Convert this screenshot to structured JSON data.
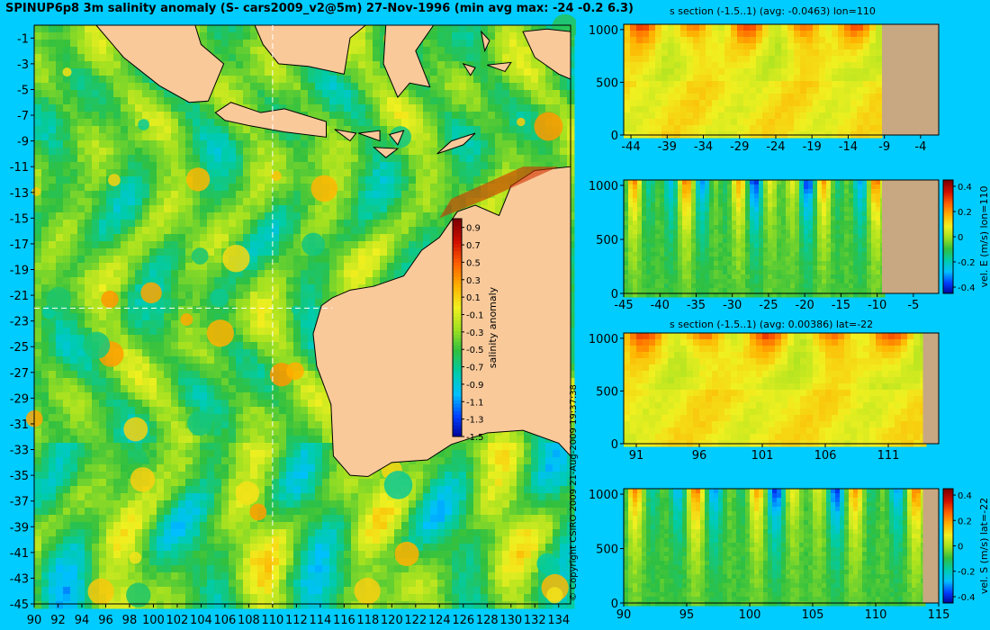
{
  "title": "SPINUP6p8 3m salinity anomaly (S- cars2009_v2@5m) 27-Nov-1996 (min avg max: -24 -0.2 6.3)",
  "copyright": "© Copyright CSIRO 2009   21-Aug-2009 19:37:38",
  "colors": {
    "background": "#00ccff",
    "land": "#f9c99a",
    "seafloor": "#c8a882",
    "guide_line": "#ffffff"
  },
  "colormap": [
    "#00008f",
    "#0040ff",
    "#00c0ff",
    "#00ccaa",
    "#30c040",
    "#a0e020",
    "#f0f020",
    "#ffb000",
    "#ff6000",
    "#d01000",
    "#800000"
  ],
  "chart_data": [
    {
      "id": "map",
      "type": "heatmap",
      "title": "SPINUP6p8 3m salinity anomaly (S- cars2009_v2@5m) 27-Nov-1996 (min avg max: -24 -0.2 6.3)",
      "x_ticks": [
        90,
        92,
        94,
        96,
        98,
        100,
        102,
        104,
        106,
        108,
        110,
        112,
        114,
        116,
        118,
        120,
        122,
        124,
        126,
        128,
        130,
        132,
        134
      ],
      "y_ticks": [
        -1,
        -3,
        -5,
        -7,
        -9,
        -11,
        -13,
        -15,
        -17,
        -19,
        -21,
        -23,
        -25,
        -27,
        -29,
        -31,
        -33,
        -35,
        -37,
        -39,
        -41,
        -43,
        -45
      ],
      "xlim": [
        90,
        135
      ],
      "ylim": [
        -45,
        0
      ],
      "guide_lon": 110,
      "guide_lat": -22,
      "colorbar": {
        "label": "salinity anomaly",
        "ticks": [
          "0.9",
          "0.7",
          "0.5",
          "0.3",
          "0.1",
          "-0.1",
          "-0.3",
          "-0.5",
          "-0.7",
          "-0.9",
          "-1.1",
          "-1.3",
          "-1.5"
        ],
        "range": [
          -1.5,
          1.0
        ]
      }
    },
    {
      "id": "s-lon",
      "type": "heatmap",
      "title": "s section (-1.5..1) (avg: -0.0463) lon=110",
      "x_ticks": [
        "-44",
        "-39",
        "-34",
        "-29",
        "-24",
        "-19",
        "-14",
        "-9",
        "-4"
      ],
      "y_ticks": [
        "0",
        "500",
        "1000"
      ],
      "xlim": [
        -45,
        -1.5
      ],
      "ylim": [
        1050,
        0
      ]
    },
    {
      "id": "v-lon",
      "type": "heatmap",
      "title": "",
      "x_ticks": [
        "-45",
        "-40",
        "-35",
        "-30",
        "-25",
        "-20",
        "-15",
        "-10",
        "-5"
      ],
      "y_ticks": [
        "0",
        "500",
        "1000"
      ],
      "xlim": [
        -45,
        -1.5
      ],
      "ylim": [
        1050,
        0
      ],
      "colorbar": {
        "label": "vel. E (m/s) lon=110",
        "ticks": [
          "0.4",
          "0.2",
          "0",
          "-0.2",
          "-0.4"
        ],
        "range": [
          -0.45,
          0.45
        ]
      }
    },
    {
      "id": "s-lat",
      "type": "heatmap",
      "title": "s section (-1.5..1) (avg: 0.00386) lat=-22",
      "x_ticks": [
        "91",
        "96",
        "101",
        "106",
        "111"
      ],
      "y_ticks": [
        "0",
        "500",
        "1000"
      ],
      "xlim": [
        90,
        115
      ],
      "ylim": [
        1050,
        0
      ]
    },
    {
      "id": "v-lat",
      "type": "heatmap",
      "title": "",
      "x_ticks": [
        "90",
        "95",
        "100",
        "105",
        "110",
        "115"
      ],
      "y_ticks": [
        "0",
        "500",
        "1000"
      ],
      "xlim": [
        90,
        115
      ],
      "ylim": [
        1050,
        0
      ],
      "colorbar": {
        "label": "vel. S (m/s) lat=-22",
        "ticks": [
          "0.4",
          "0.2",
          "0",
          "-0.2",
          "-0.4"
        ],
        "range": [
          -0.45,
          0.45
        ]
      }
    }
  ]
}
